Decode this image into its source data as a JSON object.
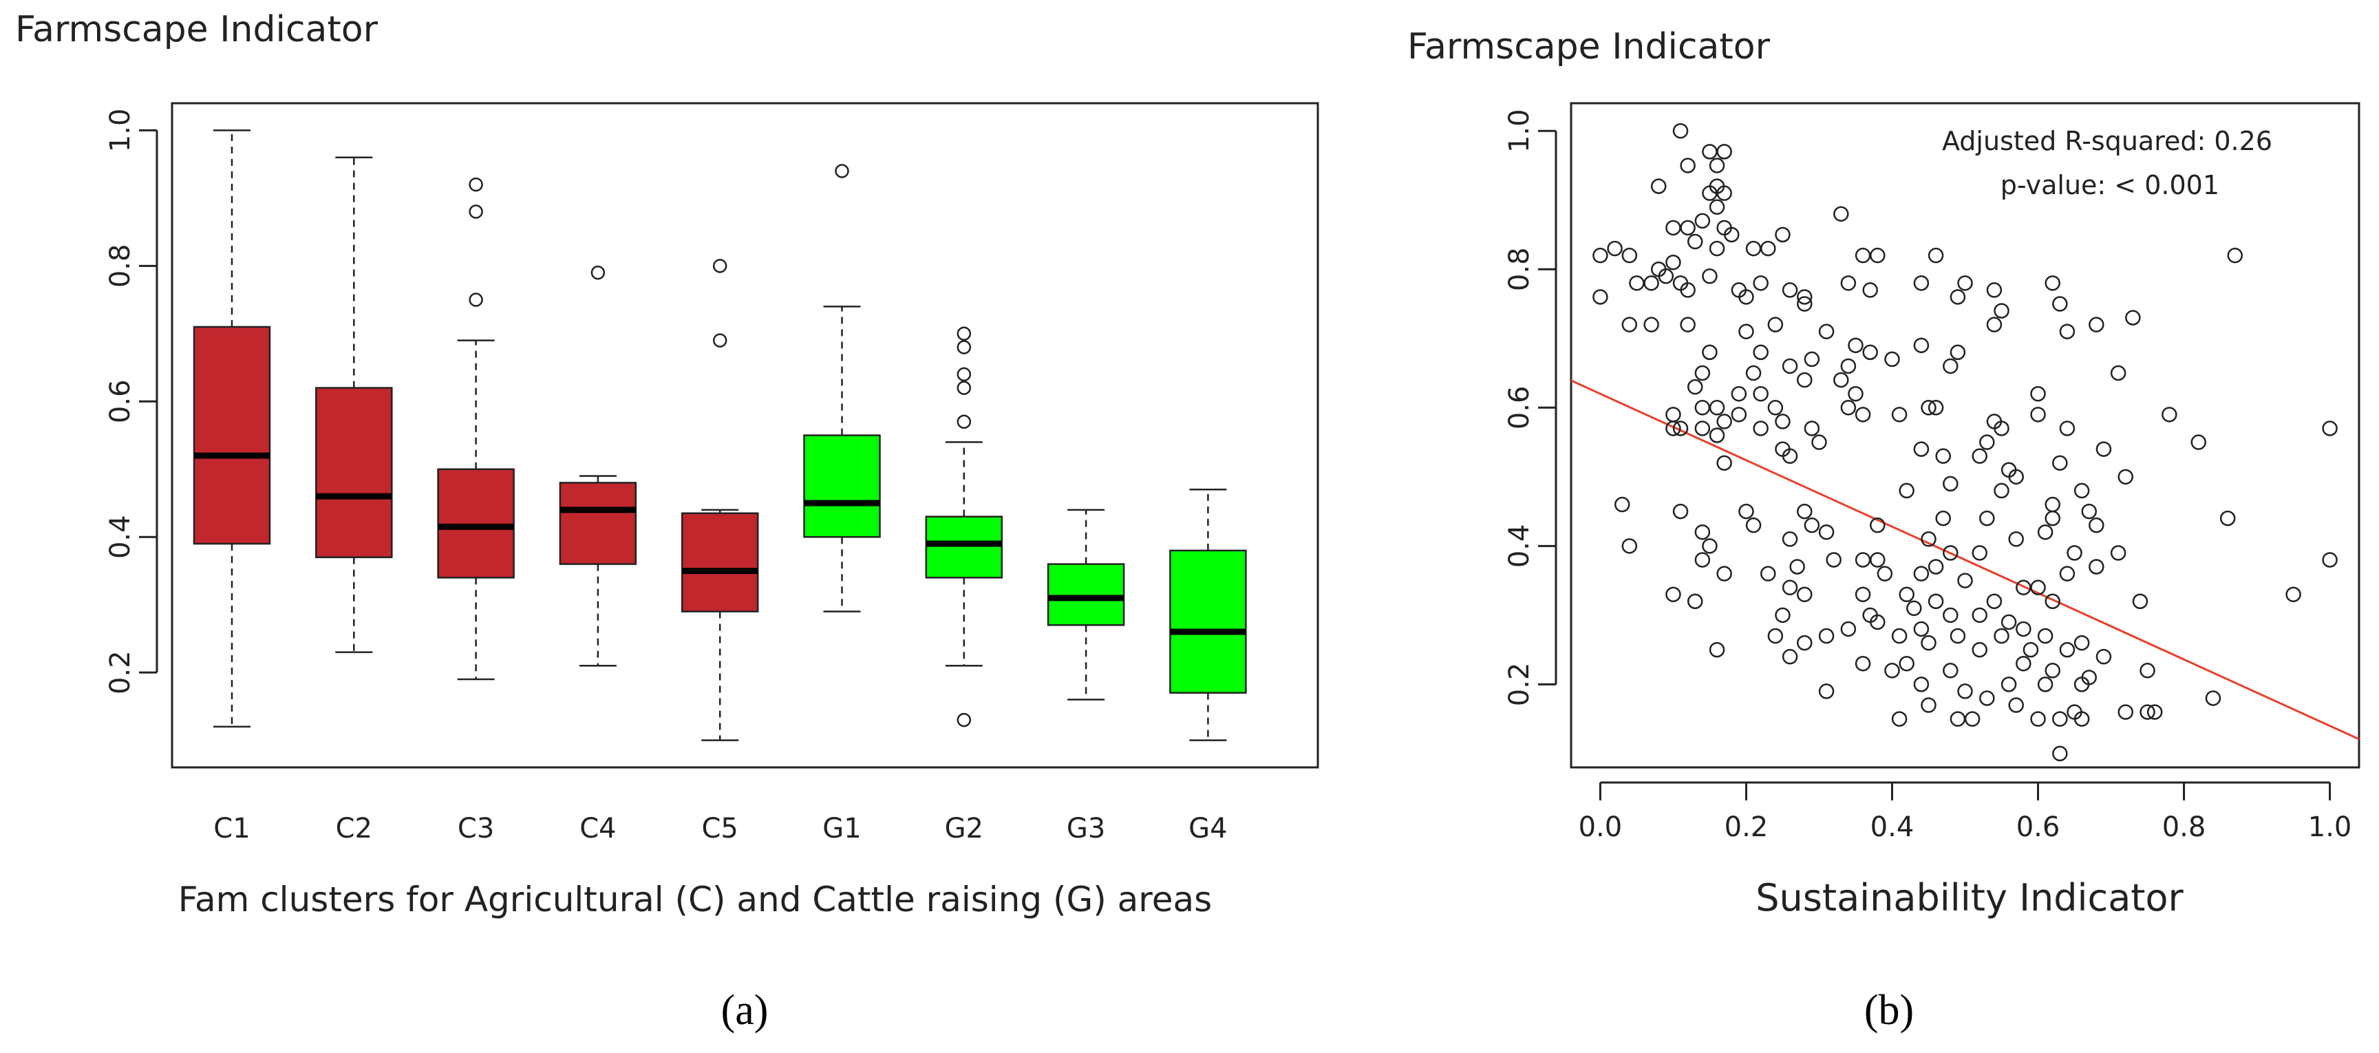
{
  "colors": {
    "agricultural": "#c1272d",
    "cattle": "#00ff00",
    "median": "#000000",
    "regression": "#e8402a",
    "axis": "#222222"
  },
  "chart_data": [
    {
      "type": "boxplot",
      "title": "Farmscape Indicator",
      "xlabel": "Fam clusters for Agricultural (C)  and Cattle raising (G) areas",
      "panel_label": "(a)",
      "ylim": [
        0.06,
        1.04
      ],
      "yticks": [
        0.2,
        0.4,
        0.6,
        0.8,
        1.0
      ],
      "ytick_labels": [
        "0.2",
        "0.4",
        "0.6",
        "0.8",
        "1.0"
      ],
      "categories": [
        "C1",
        "C2",
        "C3",
        "C4",
        "C5",
        "G1",
        "G2",
        "G3",
        "G4"
      ],
      "boxes": [
        {
          "name": "C1",
          "group": "agricultural",
          "min": 0.12,
          "q1": 0.39,
          "median": 0.52,
          "q3": 0.71,
          "max": 1.0,
          "outliers": []
        },
        {
          "name": "C2",
          "group": "agricultural",
          "min": 0.23,
          "q1": 0.37,
          "median": 0.46,
          "q3": 0.62,
          "max": 0.96,
          "outliers": []
        },
        {
          "name": "C3",
          "group": "agricultural",
          "min": 0.19,
          "q1": 0.34,
          "median": 0.415,
          "q3": 0.5,
          "max": 0.69,
          "outliers": [
            0.75,
            0.88,
            0.92
          ]
        },
        {
          "name": "C4",
          "group": "agricultural",
          "min": 0.21,
          "q1": 0.36,
          "median": 0.44,
          "q3": 0.48,
          "max": 0.49,
          "outliers": [
            0.79
          ]
        },
        {
          "name": "C5",
          "group": "agricultural",
          "min": 0.1,
          "q1": 0.29,
          "median": 0.35,
          "q3": 0.435,
          "max": 0.44,
          "outliers": [
            0.69,
            0.8
          ]
        },
        {
          "name": "G1",
          "group": "cattle",
          "min": 0.29,
          "q1": 0.4,
          "median": 0.45,
          "q3": 0.55,
          "max": 0.74,
          "outliers": [
            0.94
          ]
        },
        {
          "name": "G2",
          "group": "cattle",
          "min": 0.21,
          "q1": 0.34,
          "median": 0.39,
          "q3": 0.43,
          "max": 0.54,
          "outliers": [
            0.13,
            0.57,
            0.62,
            0.64,
            0.68,
            0.7
          ]
        },
        {
          "name": "G3",
          "group": "cattle",
          "min": 0.16,
          "q1": 0.27,
          "median": 0.31,
          "q3": 0.36,
          "max": 0.44,
          "outliers": []
        },
        {
          "name": "G4",
          "group": "cattle",
          "min": 0.1,
          "q1": 0.17,
          "median": 0.26,
          "q3": 0.38,
          "max": 0.47,
          "outliers": []
        }
      ]
    },
    {
      "type": "scatter",
      "title": "Farmscape Indicator",
      "xlabel": "Sustainability Indicator",
      "panel_label": "(b)",
      "xlim": [
        -0.04,
        1.04
      ],
      "ylim": [
        0.08,
        1.04
      ],
      "xticks": [
        0.0,
        0.2,
        0.4,
        0.6,
        0.8,
        1.0
      ],
      "xtick_labels": [
        "0.0",
        "0.2",
        "0.4",
        "0.6",
        "0.8",
        "1.0"
      ],
      "yticks": [
        0.2,
        0.4,
        0.6,
        0.8,
        1.0
      ],
      "ytick_labels": [
        "0.2",
        "0.4",
        "0.6",
        "0.8",
        "1.0"
      ],
      "annotation_line1": "Adjusted R-squared:  0.26",
      "annotation_line2": "p-value: < 0.001",
      "regression": {
        "intercept": 0.62,
        "slope": -0.48
      },
      "points": [
        [
          0.11,
          1.0
        ],
        [
          0.15,
          0.97
        ],
        [
          0.17,
          0.97
        ],
        [
          0.12,
          0.95
        ],
        [
          0.16,
          0.95
        ],
        [
          0.15,
          0.91
        ],
        [
          0.16,
          0.92
        ],
        [
          0.08,
          0.92
        ],
        [
          0.17,
          0.91
        ],
        [
          0.16,
          0.89
        ],
        [
          0.14,
          0.87
        ],
        [
          0.17,
          0.86
        ],
        [
          0.33,
          0.88
        ],
        [
          0.1,
          0.86
        ],
        [
          0.12,
          0.86
        ],
        [
          0.18,
          0.85
        ],
        [
          0.25,
          0.85
        ],
        [
          0.13,
          0.84
        ],
        [
          0.21,
          0.83
        ],
        [
          0.0,
          0.82
        ],
        [
          0.02,
          0.83
        ],
        [
          0.04,
          0.82
        ],
        [
          0.16,
          0.83
        ],
        [
          0.23,
          0.83
        ],
        [
          0.36,
          0.82
        ],
        [
          0.38,
          0.82
        ],
        [
          0.46,
          0.82
        ],
        [
          0.87,
          0.82
        ],
        [
          0.1,
          0.81
        ],
        [
          0.08,
          0.8
        ],
        [
          0.09,
          0.79
        ],
        [
          0.11,
          0.78
        ],
        [
          0.05,
          0.78
        ],
        [
          0.07,
          0.78
        ],
        [
          0.12,
          0.77
        ],
        [
          0.15,
          0.79
        ],
        [
          0.19,
          0.77
        ],
        [
          0.22,
          0.78
        ],
        [
          0.26,
          0.77
        ],
        [
          0.28,
          0.76
        ],
        [
          0.34,
          0.78
        ],
        [
          0.44,
          0.78
        ],
        [
          0.5,
          0.78
        ],
        [
          0.62,
          0.78
        ],
        [
          0.2,
          0.76
        ],
        [
          0.28,
          0.75
        ],
        [
          0.37,
          0.77
        ],
        [
          0.49,
          0.76
        ],
        [
          0.54,
          0.77
        ],
        [
          0.63,
          0.75
        ],
        [
          0.73,
          0.73
        ],
        [
          0.55,
          0.74
        ],
        [
          0.0,
          0.76
        ],
        [
          0.04,
          0.72
        ],
        [
          0.07,
          0.72
        ],
        [
          0.12,
          0.72
        ],
        [
          0.2,
          0.71
        ],
        [
          0.31,
          0.71
        ],
        [
          0.24,
          0.72
        ],
        [
          0.54,
          0.72
        ],
        [
          0.68,
          0.72
        ],
        [
          0.64,
          0.71
        ],
        [
          0.35,
          0.69
        ],
        [
          0.44,
          0.69
        ],
        [
          0.37,
          0.68
        ],
        [
          0.15,
          0.68
        ],
        [
          0.22,
          0.68
        ],
        [
          0.29,
          0.67
        ],
        [
          0.4,
          0.67
        ],
        [
          0.49,
          0.68
        ],
        [
          0.48,
          0.66
        ],
        [
          0.14,
          0.65
        ],
        [
          0.21,
          0.65
        ],
        [
          0.26,
          0.66
        ],
        [
          0.34,
          0.66
        ],
        [
          0.33,
          0.64
        ],
        [
          0.28,
          0.64
        ],
        [
          0.71,
          0.65
        ],
        [
          0.13,
          0.63
        ],
        [
          0.19,
          0.62
        ],
        [
          0.22,
          0.62
        ],
        [
          0.16,
          0.6
        ],
        [
          0.19,
          0.59
        ],
        [
          0.14,
          0.6
        ],
        [
          0.24,
          0.6
        ],
        [
          0.35,
          0.62
        ],
        [
          0.34,
          0.6
        ],
        [
          0.45,
          0.6
        ],
        [
          0.6,
          0.62
        ],
        [
          0.6,
          0.59
        ],
        [
          0.41,
          0.59
        ],
        [
          0.1,
          0.59
        ],
        [
          0.14,
          0.57
        ],
        [
          0.17,
          0.58
        ],
        [
          0.22,
          0.57
        ],
        [
          0.25,
          0.58
        ],
        [
          0.29,
          0.57
        ],
        [
          0.36,
          0.59
        ],
        [
          0.54,
          0.58
        ],
        [
          0.55,
          0.57
        ],
        [
          0.64,
          0.57
        ],
        [
          0.78,
          0.59
        ],
        [
          0.82,
          0.55
        ],
        [
          0.16,
          0.56
        ],
        [
          0.25,
          0.54
        ],
        [
          0.3,
          0.55
        ],
        [
          0.11,
          0.57
        ],
        [
          0.53,
          0.55
        ],
        [
          0.69,
          0.54
        ],
        [
          0.52,
          0.53
        ],
        [
          0.63,
          0.52
        ],
        [
          0.72,
          0.5
        ],
        [
          0.17,
          0.52
        ],
        [
          0.26,
          0.53
        ],
        [
          0.44,
          0.54
        ],
        [
          0.47,
          0.53
        ],
        [
          0.56,
          0.51
        ],
        [
          0.57,
          0.5
        ],
        [
          0.48,
          0.49
        ],
        [
          0.55,
          0.48
        ],
        [
          0.66,
          0.48
        ],
        [
          0.28,
          0.45
        ],
        [
          0.42,
          0.48
        ],
        [
          0.2,
          0.45
        ],
        [
          0.11,
          0.45
        ],
        [
          0.14,
          0.42
        ],
        [
          0.29,
          0.43
        ],
        [
          0.38,
          0.43
        ],
        [
          0.62,
          0.44
        ],
        [
          0.67,
          0.45
        ],
        [
          0.47,
          0.44
        ],
        [
          0.53,
          0.44
        ],
        [
          0.61,
          0.42
        ],
        [
          0.26,
          0.41
        ],
        [
          0.31,
          0.42
        ],
        [
          0.21,
          0.43
        ],
        [
          0.62,
          0.46
        ],
        [
          0.86,
          0.44
        ],
        [
          0.15,
          0.4
        ],
        [
          0.14,
          0.38
        ],
        [
          0.03,
          0.46
        ],
        [
          0.04,
          0.4
        ],
        [
          0.68,
          0.43
        ],
        [
          0.45,
          0.41
        ],
        [
          0.36,
          0.38
        ],
        [
          0.38,
          0.38
        ],
        [
          0.48,
          0.39
        ],
        [
          0.52,
          0.39
        ],
        [
          0.65,
          0.39
        ],
        [
          0.71,
          0.39
        ],
        [
          0.27,
          0.37
        ],
        [
          0.17,
          0.36
        ],
        [
          0.23,
          0.36
        ],
        [
          0.39,
          0.36
        ],
        [
          0.44,
          0.36
        ],
        [
          0.46,
          0.37
        ],
        [
          0.64,
          0.36
        ],
        [
          0.68,
          0.37
        ],
        [
          0.5,
          0.35
        ],
        [
          0.58,
          0.34
        ],
        [
          0.26,
          0.34
        ],
        [
          0.28,
          0.33
        ],
        [
          0.36,
          0.33
        ],
        [
          0.42,
          0.33
        ],
        [
          0.46,
          0.32
        ],
        [
          0.54,
          0.32
        ],
        [
          0.6,
          0.34
        ],
        [
          0.1,
          0.33
        ],
        [
          0.95,
          0.33
        ],
        [
          0.13,
          0.32
        ],
        [
          0.25,
          0.3
        ],
        [
          0.37,
          0.3
        ],
        [
          0.43,
          0.31
        ],
        [
          0.48,
          0.3
        ],
        [
          0.52,
          0.3
        ],
        [
          0.56,
          0.29
        ],
        [
          0.62,
          0.32
        ],
        [
          0.74,
          0.32
        ],
        [
          0.34,
          0.28
        ],
        [
          0.38,
          0.29
        ],
        [
          0.41,
          0.27
        ],
        [
          0.44,
          0.28
        ],
        [
          0.49,
          0.27
        ],
        [
          0.55,
          0.27
        ],
        [
          0.58,
          0.28
        ],
        [
          0.61,
          0.27
        ],
        [
          0.66,
          0.26
        ],
        [
          0.28,
          0.26
        ],
        [
          0.31,
          0.27
        ],
        [
          0.45,
          0.26
        ],
        [
          0.52,
          0.25
        ],
        [
          0.59,
          0.25
        ],
        [
          0.64,
          0.25
        ],
        [
          0.69,
          0.24
        ],
        [
          0.16,
          0.25
        ],
        [
          0.26,
          0.24
        ],
        [
          0.36,
          0.23
        ],
        [
          0.42,
          0.23
        ],
        [
          0.48,
          0.22
        ],
        [
          0.58,
          0.23
        ],
        [
          0.62,
          0.22
        ],
        [
          0.67,
          0.21
        ],
        [
          0.75,
          0.22
        ],
        [
          0.4,
          0.22
        ],
        [
          0.44,
          0.2
        ],
        [
          0.5,
          0.19
        ],
        [
          0.56,
          0.2
        ],
        [
          0.61,
          0.2
        ],
        [
          0.66,
          0.2
        ],
        [
          0.31,
          0.19
        ],
        [
          0.84,
          0.18
        ],
        [
          0.45,
          0.17
        ],
        [
          0.53,
          0.18
        ],
        [
          0.57,
          0.17
        ],
        [
          0.65,
          0.16
        ],
        [
          0.72,
          0.16
        ],
        [
          0.75,
          0.16
        ],
        [
          0.76,
          0.16
        ],
        [
          0.41,
          0.15
        ],
        [
          0.49,
          0.15
        ],
        [
          0.51,
          0.15
        ],
        [
          0.6,
          0.15
        ],
        [
          0.63,
          0.15
        ],
        [
          0.66,
          0.15
        ],
        [
          0.63,
          0.1
        ],
        [
          1.0,
          0.57
        ],
        [
          1.0,
          0.38
        ],
        [
          0.1,
          0.57
        ],
        [
          0.32,
          0.38
        ],
        [
          0.24,
          0.27
        ],
        [
          0.46,
          0.6
        ],
        [
          0.57,
          0.41
        ]
      ]
    }
  ]
}
